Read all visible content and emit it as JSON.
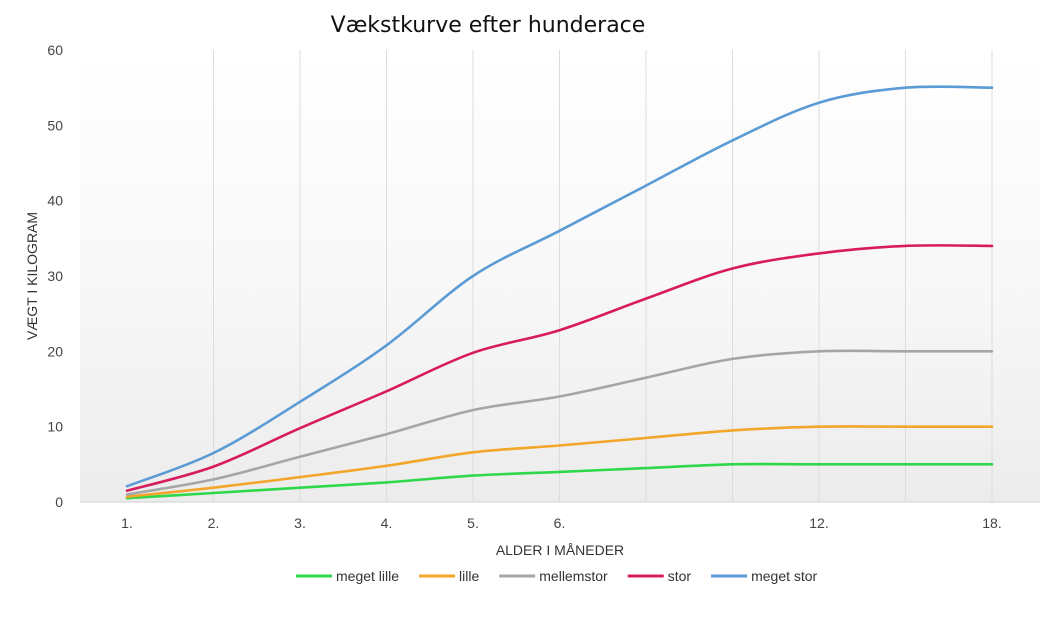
{
  "chart_data": {
    "type": "line",
    "title": "Vækstkurve efter hunderace",
    "xlabel": "ALDER I MÅNEDER",
    "ylabel": "VÆGT I KILOGRAM",
    "ylim": [
      0,
      60
    ],
    "yticks": [
      0,
      10,
      20,
      30,
      40,
      50,
      60
    ],
    "x": [
      "1.",
      "2.",
      "3.",
      "4.",
      "5.",
      "6.",
      "",
      "",
      "12.",
      "",
      "18."
    ],
    "grid": "vertical lines",
    "legend_position": "bottom",
    "series": [
      {
        "name": "meget lille",
        "color": "#2ed84a",
        "values": [
          0.5,
          1.2,
          1.9,
          2.6,
          3.5,
          4.0,
          4.5,
          5.0,
          5.0,
          5.0,
          5.0
        ]
      },
      {
        "name": "lille",
        "color": "#f2a62a",
        "values": [
          0.7,
          1.9,
          3.3,
          4.8,
          6.6,
          7.5,
          8.5,
          9.5,
          10.0,
          10.0,
          10.0
        ]
      },
      {
        "name": "mellemstor",
        "color": "#a6a6a6",
        "values": [
          1.0,
          3.0,
          6.0,
          9.0,
          12.2,
          14.0,
          16.5,
          19.0,
          20.0,
          20.0,
          20.0
        ]
      },
      {
        "name": "stor",
        "color": "#d81b5e",
        "values": [
          1.5,
          4.7,
          9.8,
          14.7,
          19.8,
          22.8,
          27.0,
          31.0,
          33.0,
          34.0,
          34.0
        ]
      },
      {
        "name": "meget stor",
        "color": "#5b9bd5",
        "values": [
          2.1,
          6.5,
          13.3,
          20.8,
          30.0,
          36.0,
          42.0,
          48.0,
          53.0,
          55.0,
          55.0
        ]
      }
    ]
  }
}
